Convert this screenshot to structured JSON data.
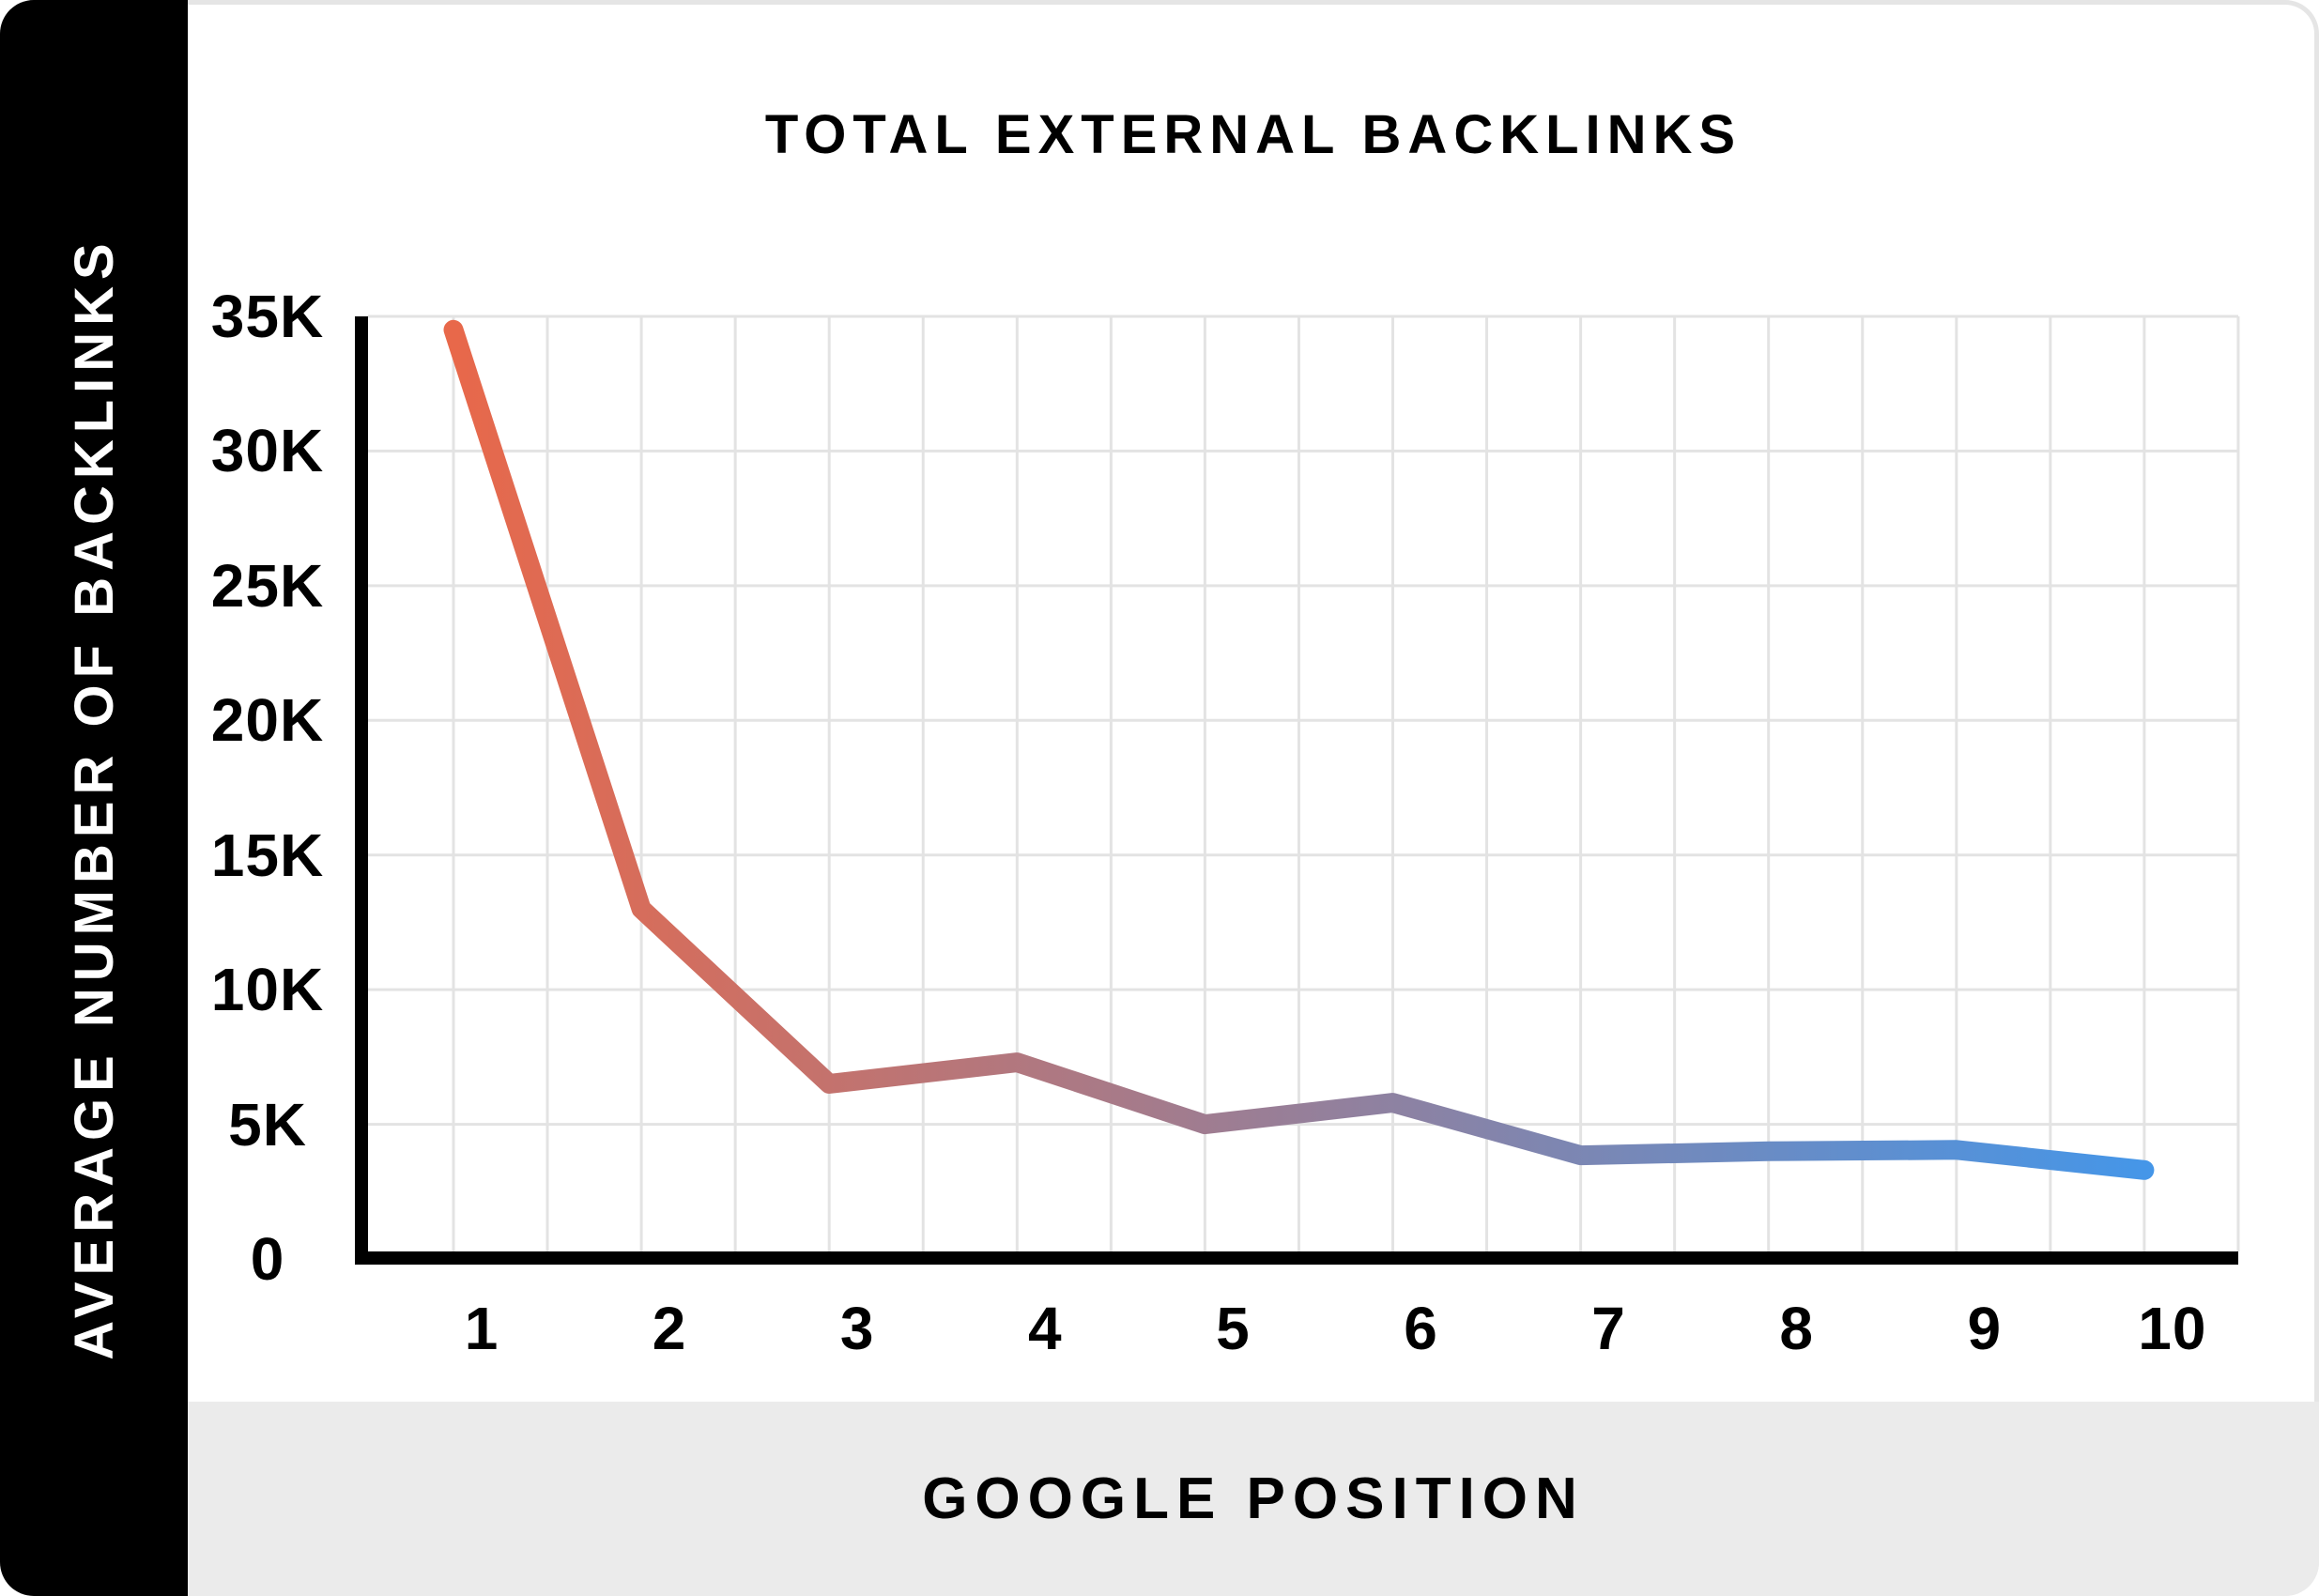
{
  "chart_data": {
    "type": "line",
    "title": "TOTAL EXTERNAL BACKLINKS",
    "xlabel": "GOOGLE POSITION",
    "ylabel": "AVERAGE NUMBER OF BACKLINKS",
    "categories": [
      "1",
      "2",
      "3",
      "4",
      "5",
      "6",
      "7",
      "8",
      "9",
      "10"
    ],
    "values": [
      34500,
      13000,
      6500,
      7300,
      5000,
      5800,
      3850,
      4000,
      4050,
      3300
    ],
    "ylim": [
      0,
      35000
    ],
    "ytick_step": 5000,
    "ytick_labels": [
      "0",
      "5K",
      "10K",
      "15K",
      "20K",
      "25K",
      "30K",
      "35K"
    ],
    "grid": true,
    "grid_minor_x": true,
    "legend_position": "none",
    "line_gradient": {
      "start": "#E8684A",
      "end": "#4596E8"
    },
    "colors": {
      "axis": "#000000",
      "grid": "#E3E3E3",
      "sidebar_bg": "#000000",
      "sidebar_text": "#FFFFFF",
      "band_bg": "#EBEBEB",
      "title_text": "#000000",
      "tick_text": "#000000",
      "card_border": "#E5E5E5"
    }
  }
}
